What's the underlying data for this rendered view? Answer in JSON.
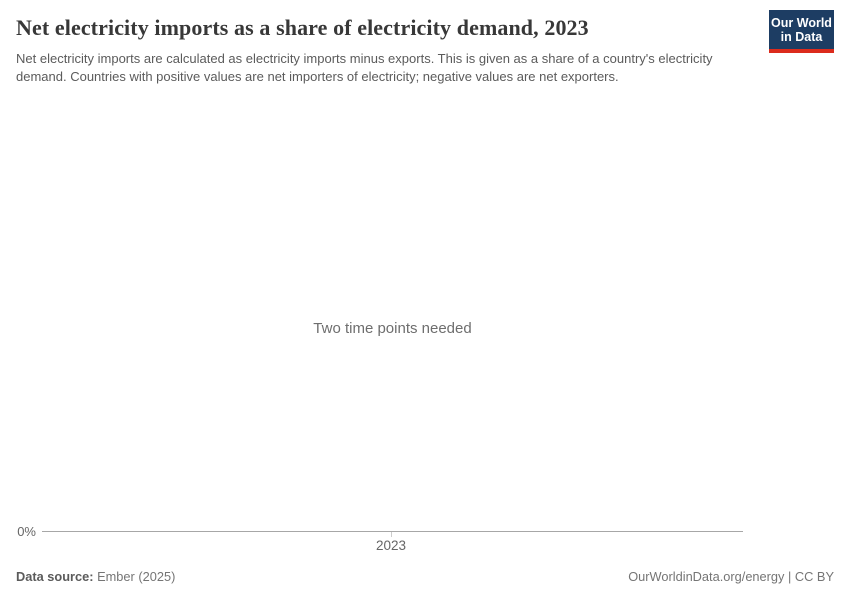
{
  "header": {
    "title": "Net electricity imports as a share of electricity demand, 2023",
    "subtitle": "Net electricity imports are calculated as electricity imports minus exports. This is given as a share of a country's electricity demand. Countries with positive values are net importers of electricity; negative values are net exporters.",
    "logo": {
      "line1": "Our World",
      "line2": "in Data"
    }
  },
  "chart": {
    "empty_state_message": "Two time points needed",
    "y_axis": {
      "tick_label": "0%"
    },
    "x_axis": {
      "tick_label": "2023"
    }
  },
  "footer": {
    "source_label": "Data source:",
    "source_value": "Ember (2025)",
    "citation": "OurWorldinData.org/energy | CC BY"
  },
  "colors": {
    "logo_navy": "#1d3d63",
    "logo_red": "#dc2b1c",
    "title_text": "#383838",
    "subtitle_text": "#5b5b5b",
    "axis_line": "#a7a7a7",
    "tick_mark": "#cccccc",
    "tick_label": "#666666",
    "footer_text": "#757575"
  },
  "chart_data": {
    "type": "line",
    "title": "Net electricity imports as a share of electricity demand, 2023",
    "x_ticks": [
      "2023"
    ],
    "y_ticks": [
      "0%"
    ],
    "x": [
      2023
    ],
    "series": [],
    "empty_state_message": "Two time points needed",
    "xlabel": "",
    "ylabel": "",
    "grid": false,
    "legend": false,
    "note": "No data plotted; chart shows empty state because two time points are required"
  }
}
